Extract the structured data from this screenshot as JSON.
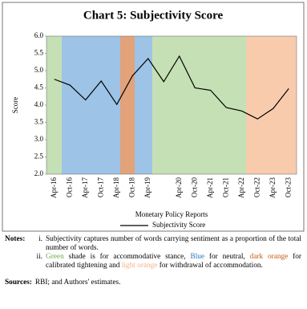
{
  "chart_data": {
    "type": "line",
    "title": "Chart 5: Subjectivity Score",
    "x_label": "Monetary Policy Reports",
    "y_label": "Score",
    "categories": [
      "Apr-16",
      "Oct-16",
      "Apr-17",
      "Oct-17",
      "Apr-18",
      "Oct-18",
      "Apr-19",
      null,
      "Apr-20",
      "Oct-20",
      "Apr-21",
      "Oct-21",
      "Apr-22",
      "Oct-22",
      "Apr-23",
      "Oct-23"
    ],
    "series": [
      {
        "name": "Subjectivity Score",
        "color": "#000000",
        "values": [
          4.75,
          4.58,
          4.15,
          4.7,
          4.02,
          4.85,
          5.35,
          4.68,
          5.42,
          4.5,
          4.43,
          3.93,
          3.83,
          3.6,
          3.9,
          4.48
        ]
      }
    ],
    "ylim": [
      2,
      6
    ],
    "yticks": [
      {
        "value": 2,
        "label": "2.0"
      },
      {
        "value": 2.5,
        "label": "2.5"
      },
      {
        "value": 3,
        "label": "3.0"
      },
      {
        "value": 3.5,
        "label": "3.5"
      },
      {
        "value": 4,
        "label": "4.0"
      },
      {
        "value": 4.5,
        "label": "4.5"
      },
      {
        "value": 5,
        "label": "5.0"
      },
      {
        "value": 5.5,
        "label": "5.5"
      },
      {
        "value": 6,
        "label": "6.0"
      }
    ]
  },
  "notes": {
    "label": "Notes:",
    "items": [
      {
        "marker": "i.",
        "text": "Subjectivity captures number of words carrying sentiment as a proportion of the total number of words."
      },
      {
        "marker": "ii.",
        "parts": [
          "Green",
          " shade is for accommodative stance, ",
          "Blue",
          " for neutral, ",
          "dark orange",
          " for calibrated tightening and ",
          "light orange",
          " for withdrawal of accommodation."
        ]
      }
    ]
  },
  "sources": {
    "label": "Sources:",
    "text": "RBI; and Authors' estimates."
  }
}
